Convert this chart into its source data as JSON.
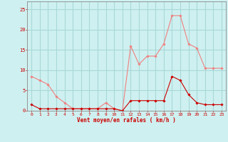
{
  "x": [
    0,
    1,
    2,
    3,
    4,
    5,
    6,
    7,
    8,
    9,
    10,
    11,
    12,
    13,
    14,
    15,
    16,
    17,
    18,
    19,
    20,
    21,
    22,
    23
  ],
  "y_rafales": [
    8.5,
    7.5,
    6.5,
    3.5,
    2.0,
    0.5,
    0.5,
    0.5,
    0.5,
    2.0,
    0.5,
    0.0,
    16.0,
    11.5,
    13.5,
    13.5,
    16.5,
    23.5,
    23.5,
    16.5,
    15.5,
    10.5,
    10.5,
    10.5
  ],
  "y_vent": [
    1.5,
    0.5,
    0.5,
    0.5,
    0.5,
    0.5,
    0.5,
    0.5,
    0.5,
    0.5,
    0.5,
    0.0,
    2.5,
    2.5,
    2.5,
    2.5,
    2.5,
    8.5,
    7.5,
    4.0,
    2.0,
    1.5,
    1.5,
    1.5
  ],
  "color_rafales": "#f08080",
  "color_vent": "#cc0000",
  "bg_color": "#cff0f0",
  "grid_color": "#a8d8d8",
  "xlabel": "Vent moyen/en rafales ( km/h )",
  "xlabel_color": "#cc0000",
  "tick_color": "#cc0000",
  "ylim": [
    0,
    27
  ],
  "yticks": [
    0,
    5,
    10,
    15,
    20,
    25
  ],
  "xlim": [
    -0.5,
    23.5
  ],
  "spine_color": "#888888"
}
